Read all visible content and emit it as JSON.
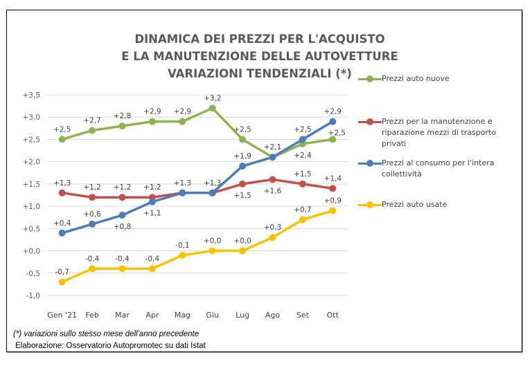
{
  "chart_data": {
    "type": "line",
    "title_lines": [
      "DINAMICA DEI PREZZI PER L'ACQUISTO",
      "E LA MANUTENZIONE DELLE AUTOVETTURE",
      "VARIAZIONI TENDENZIALI (*)"
    ],
    "xlabel": "",
    "ylabel": "",
    "categories": [
      "Gen '21",
      "Feb",
      "Mar",
      "Apr",
      "Mag",
      "Giu",
      "Lug",
      "Ago",
      "Set",
      "Ott"
    ],
    "ylim": [
      -1.0,
      3.5
    ],
    "yticks": [
      3.5,
      3.0,
      2.5,
      2.0,
      1.5,
      1.0,
      0.5,
      0.0,
      -0.5,
      -1.0
    ],
    "ytick_labels": [
      "+3,5",
      "+3,0",
      "+2,5",
      "+2,0",
      "+1,5",
      "+1,0",
      "+0,5",
      "+0,0",
      "-0,5",
      "-1,0"
    ],
    "grid": true,
    "legend_position": "right",
    "series": [
      {
        "name": "Prezzi auto nuove",
        "color": "#8FB34F",
        "values": [
          2.5,
          2.7,
          2.8,
          2.9,
          2.9,
          3.2,
          2.5,
          2.1,
          2.4,
          2.5
        ],
        "labels": [
          "+2,5",
          "+2,7",
          "+2,8",
          "+2,9",
          "+2,9",
          "+3,2",
          "+2,5",
          "",
          "+2,4",
          "+2,5"
        ]
      },
      {
        "name": "Prezzi per la manutenzione e riparazione mezzi di trasporto privati",
        "color": "#C0504D",
        "values": [
          1.3,
          1.2,
          1.2,
          1.2,
          1.3,
          1.3,
          1.5,
          1.6,
          1.5,
          1.4
        ],
        "labels": [
          "+1,3",
          "+1,2",
          "+1,2",
          "+1,2",
          "+1,3",
          "+1,3",
          "+1,5",
          "+1,6",
          "+1,5",
          "+1,4"
        ]
      },
      {
        "name": "Prezzi al consumo per l'intera collettività",
        "color": "#4A7EBB",
        "values": [
          0.4,
          0.6,
          0.8,
          1.1,
          1.3,
          1.3,
          1.9,
          2.1,
          2.5,
          2.9
        ],
        "labels": [
          "+0,4",
          "+0,6",
          "+0,8",
          "+1,1",
          "",
          "",
          "+1,9",
          "+2,1",
          "+2,5",
          "+2,9"
        ]
      },
      {
        "name": "Prezzi auto usate",
        "color": "#FFC000",
        "values": [
          -0.7,
          -0.4,
          -0.4,
          -0.4,
          -0.1,
          0.0,
          0.0,
          0.3,
          0.7,
          0.9
        ],
        "labels": [
          "-0,7",
          "-0,4",
          "-0,4",
          "-0,4",
          "-0,1",
          "+0,0",
          "+0,0",
          "+0,3",
          "+0,7",
          "+0,9"
        ]
      }
    ],
    "legend": [
      {
        "label_lines": [
          "Prezzi auto nuove"
        ],
        "color": "#8FB34F"
      },
      {
        "label_lines": [
          "Prezzi per la manutenzione e",
          "riparazione mezzi di trasporto",
          "privati"
        ],
        "color": "#C0504D"
      },
      {
        "label_lines": [
          "Prezzi al consumo per l'intera",
          "collettività"
        ],
        "color": "#4A7EBB"
      },
      {
        "label_lines": [
          "Prezzi auto usate"
        ],
        "color": "#FFC000"
      }
    ],
    "annotations": {
      "footnote": "(*) variazioni sullo stesso mese dell'anno precedente",
      "source": "Elaborazione: Osservatorio Autopromotec su dati Istat"
    }
  },
  "colors": {
    "title": "#595959",
    "gridline": "#D9D9D9",
    "text": "#404040"
  }
}
